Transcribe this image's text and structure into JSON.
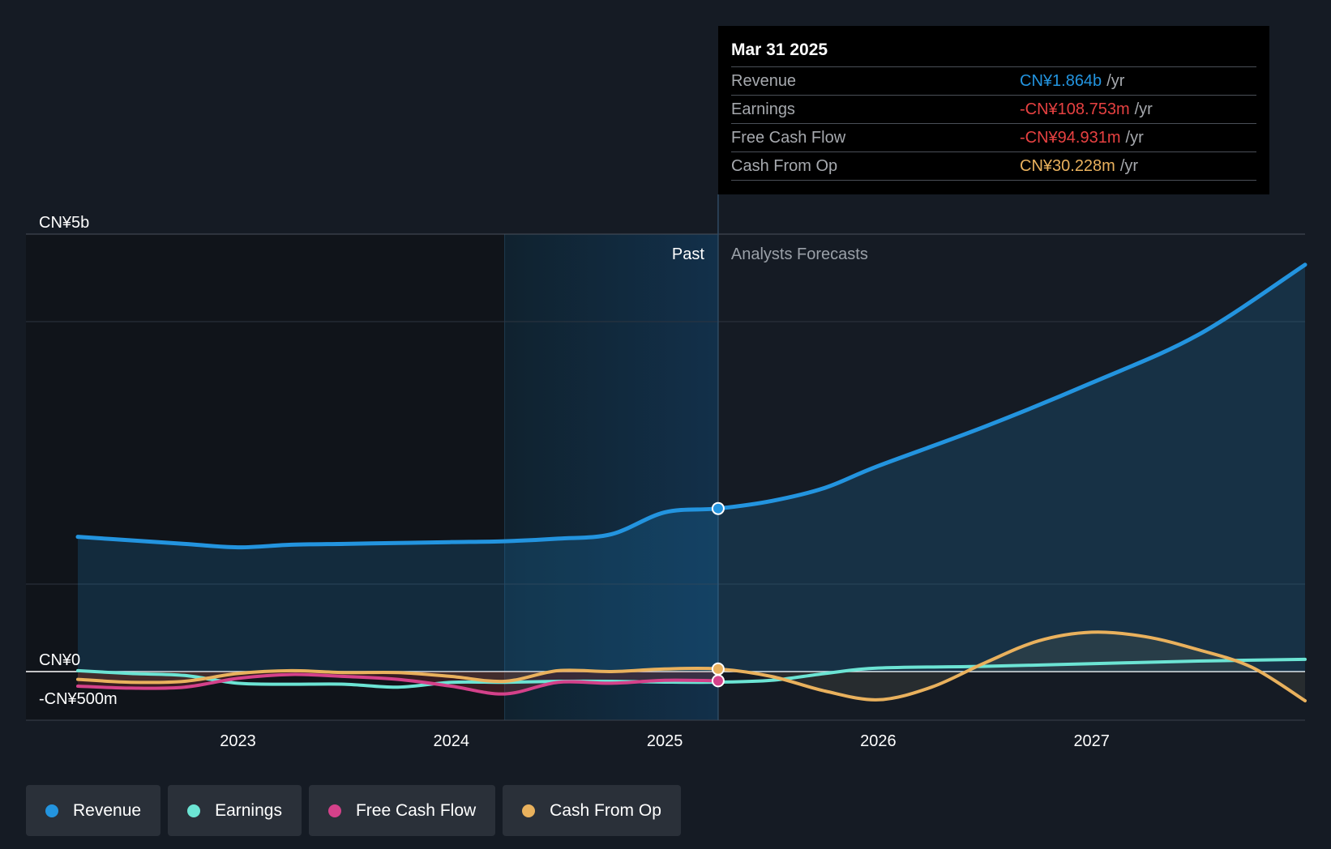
{
  "tooltip": {
    "date": "Mar 31 2025",
    "rows": [
      {
        "label": "Revenue",
        "value": "CN¥1.864b",
        "unit": "/yr",
        "color": "#2394df"
      },
      {
        "label": "Earnings",
        "value": "-CN¥108.753m",
        "unit": "/yr",
        "color": "#e64141"
      },
      {
        "label": "Free Cash Flow",
        "value": "-CN¥94.931m",
        "unit": "/yr",
        "color": "#e64141"
      },
      {
        "label": "Cash From Op",
        "value": "CN¥30.228m",
        "unit": "/yr",
        "color": "#e9b15d"
      }
    ]
  },
  "legend": [
    {
      "label": "Revenue",
      "color": "#2394df"
    },
    {
      "label": "Earnings",
      "color": "#6ce4d4"
    },
    {
      "label": "Free Cash Flow",
      "color": "#d4418a"
    },
    {
      "label": "Cash From Op",
      "color": "#e9b15d"
    }
  ],
  "chart_data": {
    "type": "line",
    "y_tick_labels": [
      "CN¥5b",
      "CN¥0",
      "-CN¥500m"
    ],
    "ylim": [
      -500,
      5000
    ],
    "y_unit": "CN¥ millions",
    "xlim": [
      2022.25,
      2028.0
    ],
    "x_tick_labels": [
      "2023",
      "2024",
      "2025",
      "2026",
      "2027"
    ],
    "x_ticks": [
      2023,
      2024,
      2025,
      2026,
      2027
    ],
    "past_label": "Past",
    "forecast_label": "Analysts Forecasts",
    "highlight_start": 2024.25,
    "divider_x": 2025.25,
    "series": [
      {
        "name": "Revenue",
        "color": "#2394df",
        "x": [
          2022.25,
          2022.5,
          2022.75,
          2023.0,
          2023.25,
          2023.5,
          2023.75,
          2024.0,
          2024.25,
          2024.5,
          2024.75,
          2025.0,
          2025.25,
          2025.5,
          2025.75,
          2026.0,
          2026.5,
          2027.0,
          2027.5,
          2028.0
        ],
        "y": [
          1540,
          1500,
          1460,
          1420,
          1450,
          1460,
          1470,
          1480,
          1490,
          1520,
          1570,
          1820,
          1864,
          1950,
          2100,
          2350,
          2800,
          3300,
          3850,
          4650
        ]
      },
      {
        "name": "Earnings",
        "color": "#6ce4d4",
        "x": [
          2022.25,
          2022.5,
          2022.75,
          2023.0,
          2023.25,
          2023.5,
          2023.75,
          2024.0,
          2024.25,
          2024.5,
          2024.75,
          2025.0,
          2025.25,
          2025.5,
          2025.75,
          2026.0,
          2026.5,
          2027.0,
          2027.5,
          2028.0
        ],
        "y": [
          10,
          -20,
          -40,
          -120,
          -130,
          -130,
          -160,
          -110,
          -110,
          -100,
          -100,
          -108,
          -108.753,
          -90,
          -20,
          40,
          60,
          90,
          120,
          140
        ]
      },
      {
        "name": "Free Cash Flow",
        "color": "#d4418a",
        "x": [
          2022.25,
          2022.5,
          2022.75,
          2023.0,
          2023.25,
          2023.5,
          2023.75,
          2024.0,
          2024.25,
          2024.5,
          2024.75,
          2025.0,
          2025.25
        ],
        "y": [
          -150,
          -170,
          -160,
          -70,
          -30,
          -50,
          -80,
          -150,
          -230,
          -110,
          -120,
          -90,
          -94.931
        ]
      },
      {
        "name": "Cash From Op",
        "color": "#e9b15d",
        "x": [
          2022.25,
          2022.5,
          2022.75,
          2023.0,
          2023.25,
          2023.5,
          2023.75,
          2024.0,
          2024.25,
          2024.5,
          2024.75,
          2025.0,
          2025.25,
          2025.5,
          2025.75,
          2026.0,
          2026.25,
          2026.5,
          2026.75,
          2027.0,
          2027.25,
          2027.5,
          2027.75,
          2028.0
        ],
        "y": [
          -80,
          -110,
          -100,
          -20,
          10,
          -10,
          -10,
          -50,
          -100,
          10,
          0,
          30,
          30.228,
          -50,
          -200,
          -290,
          -160,
          100,
          350,
          450,
          400,
          250,
          50,
          -300
        ]
      }
    ],
    "highlight_points": [
      {
        "series": "Revenue",
        "x": 2025.25,
        "y": 1864
      },
      {
        "series": "Cash From Op",
        "x": 2025.25,
        "y": 30.228
      },
      {
        "series": "Free Cash Flow",
        "x": 2025.25,
        "y": -94.931
      }
    ]
  }
}
